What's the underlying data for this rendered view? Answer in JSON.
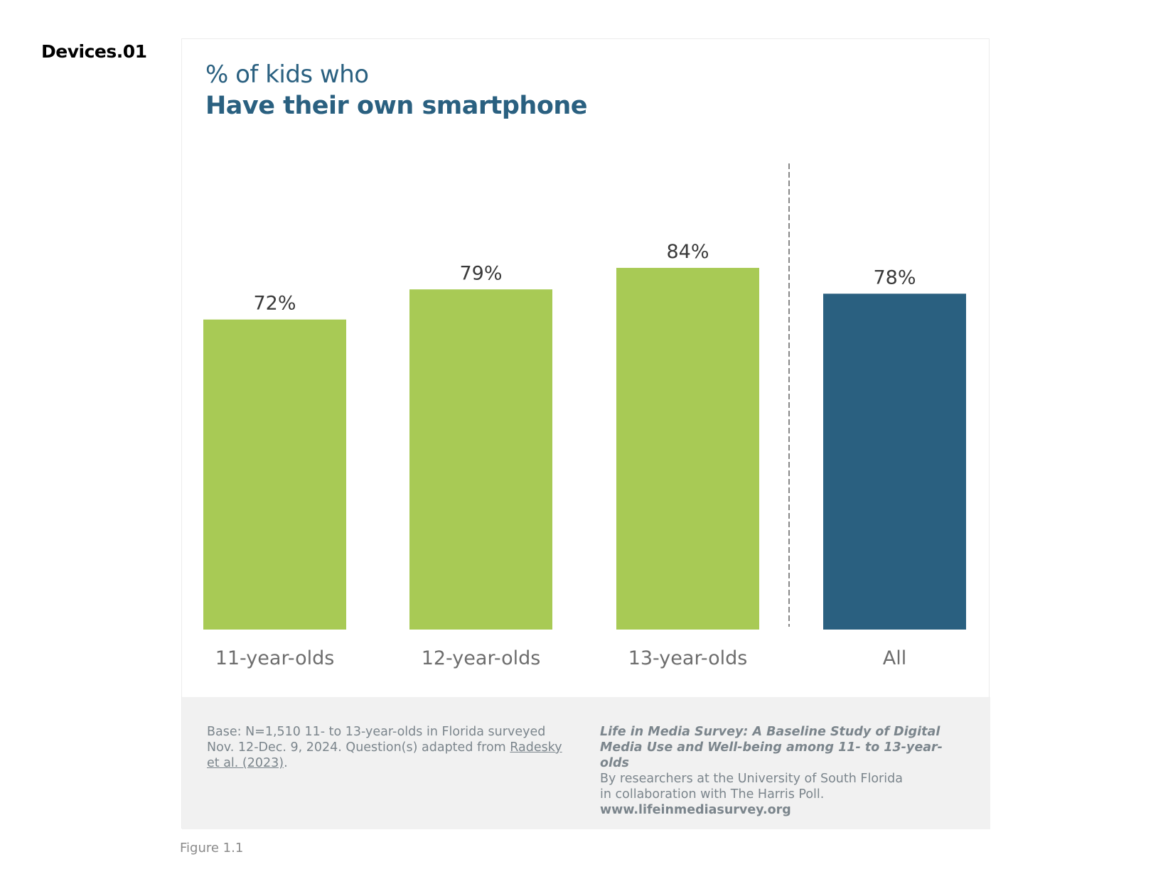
{
  "figure_id": "Devices.01",
  "caption": "Figure 1.1",
  "colors": {
    "age_bar": "#a8ca55",
    "all_bar": "#2a6080",
    "title": "#2a6080",
    "value_label": "#3a3a3a",
    "category_label": "#6d6d6d",
    "divider": "#888888",
    "footer_bg": "#f1f1f1"
  },
  "chart_data": {
    "type": "bar",
    "subtitle": "% of kids who",
    "title": "Have their own smartphone",
    "categories": [
      "11-year-olds",
      "12-year-olds",
      "13-year-olds",
      "All"
    ],
    "values": [
      72,
      79,
      84,
      78
    ],
    "value_labels": [
      "72%",
      "79%",
      "84%",
      "78%"
    ],
    "series_groups": [
      "age",
      "age",
      "age",
      "total"
    ],
    "unit": "%",
    "xlabel": "",
    "ylabel": "",
    "ylim": [
      0,
      100
    ],
    "grid": false,
    "legend": "none",
    "divider_before_category": "All"
  },
  "footer": {
    "note_text": "Base: N=1,510 11- to 13-year-olds in Florida surveyed Nov. 12-Dec. 9, 2024. Question(s) adapted from ",
    "note_link": "Radesky et al. (2023)",
    "note_end": ".",
    "study_title": "Life in Media Survey: A Baseline Study of Digital Media Use and Well-being among 11- to 13-year-olds",
    "credit_line1": "By researchers at the University of South Florida",
    "credit_line2": "in collaboration with The Harris Poll.",
    "url": "www.lifeinmediasurvey.org"
  }
}
